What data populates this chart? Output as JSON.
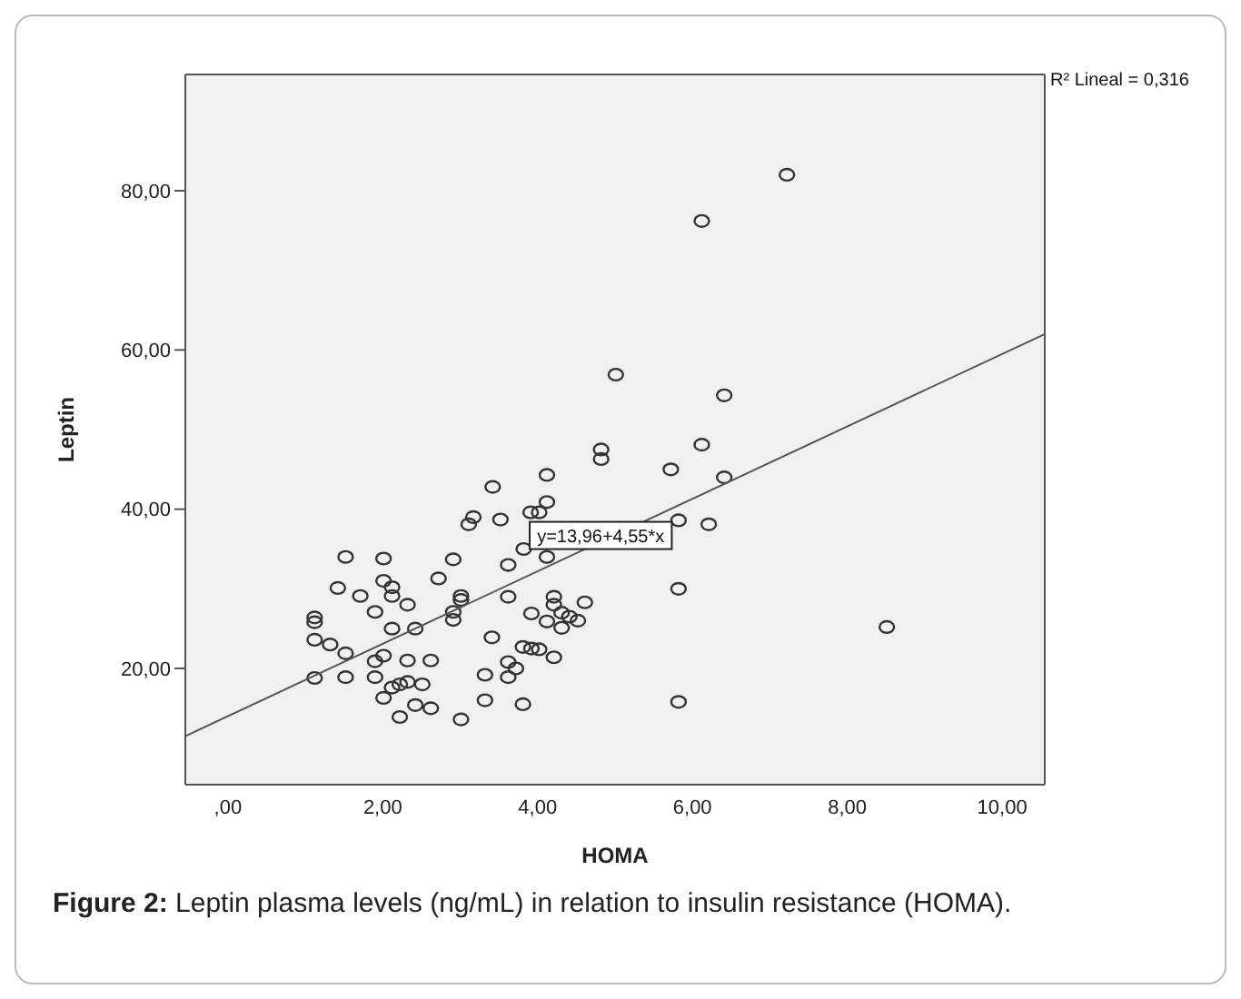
{
  "chart_data": {
    "type": "scatter",
    "xlabel": "HOMA",
    "ylabel": "Leptin",
    "xlim": [
      -0.55,
      10.55
    ],
    "xticks": [
      {
        "value": 0,
        "label": ",00"
      },
      {
        "value": 2,
        "label": "2,00"
      },
      {
        "value": 4,
        "label": "4,00"
      },
      {
        "value": 6,
        "label": "6,00"
      },
      {
        "value": 8,
        "label": "8,00"
      },
      {
        "value": 10,
        "label": "10,00"
      }
    ],
    "ylim": [
      5.4,
      94.6
    ],
    "yticks": [
      {
        "value": 20,
        "label": "20,00"
      },
      {
        "value": 40,
        "label": "40,00"
      },
      {
        "value": 60,
        "label": "60,00"
      },
      {
        "value": 80,
        "label": "80,00"
      }
    ],
    "marker": "circle",
    "series": [
      {
        "color": "#333333",
        "x": [
          7.22,
          6.12,
          5.01,
          6.41,
          4.82,
          4.82,
          6.12,
          5.72,
          6.41,
          4.12,
          3.42,
          4.12,
          3.91,
          4.02,
          3.17,
          3.11,
          3.52,
          5.82,
          6.21,
          3.82,
          4.12,
          3.62,
          1.52,
          2.01,
          2.91,
          2.01,
          2.72,
          2.12,
          1.42,
          1.71,
          2.12,
          2.32,
          3.01,
          3.01,
          3.62,
          5.82,
          4.21,
          4.21,
          4.61,
          1.9,
          2.91,
          2.91,
          3.92,
          4.31,
          4.41,
          4.52,
          4.12,
          4.31,
          1.12,
          1.12,
          2.12,
          2.42,
          1.12,
          1.32,
          1.52,
          3.41,
          3.81,
          3.92,
          4.02,
          4.21,
          2.01,
          1.9,
          2.32,
          2.62,
          3.62,
          3.72,
          3.62,
          3.32,
          1.12,
          1.52,
          1.9,
          2.01,
          2.12,
          2.22,
          2.32,
          2.51,
          2.42,
          2.62,
          2.22,
          3.01,
          3.32,
          3.81,
          5.82,
          8.51
        ],
        "values": [
          82.0,
          76.2,
          56.9,
          54.3,
          47.5,
          46.3,
          48.1,
          45.0,
          44.0,
          44.3,
          42.8,
          40.9,
          39.6,
          39.6,
          39.0,
          38.1,
          38.7,
          38.6,
          38.1,
          35.0,
          34.0,
          33.0,
          34.0,
          33.8,
          33.7,
          31.0,
          31.3,
          30.2,
          30.1,
          29.1,
          29.1,
          28.0,
          29.1,
          28.6,
          29.0,
          30.0,
          29.0,
          28.0,
          28.3,
          27.1,
          27.1,
          26.1,
          26.9,
          27.0,
          26.5,
          26.0,
          25.9,
          25.1,
          26.4,
          25.8,
          25.0,
          25.0,
          23.6,
          23.0,
          21.9,
          23.9,
          22.7,
          22.5,
          22.4,
          21.4,
          21.6,
          20.9,
          21.0,
          21.0,
          20.8,
          20.0,
          18.9,
          19.2,
          18.8,
          18.9,
          18.9,
          16.3,
          17.6,
          18.0,
          18.3,
          18.0,
          15.4,
          15.0,
          13.9,
          13.6,
          16.0,
          15.5,
          15.8,
          25.2
        ]
      },
      {
        "type": "line",
        "marker": "none",
        "color": "#555555",
        "x": [
          -0.55,
          10.55
        ],
        "values": [
          11.5,
          62.0
        ]
      }
    ],
    "annotations": [
      {
        "text": "y=13,96+4,55*x",
        "x": 4.815,
        "y": 36.7
      },
      "R² Lineal = 0,316",
      "Figure 2: Leptin plasma levels (ng/mL) in relation to insulin resistance (HOMA)."
    ]
  }
}
